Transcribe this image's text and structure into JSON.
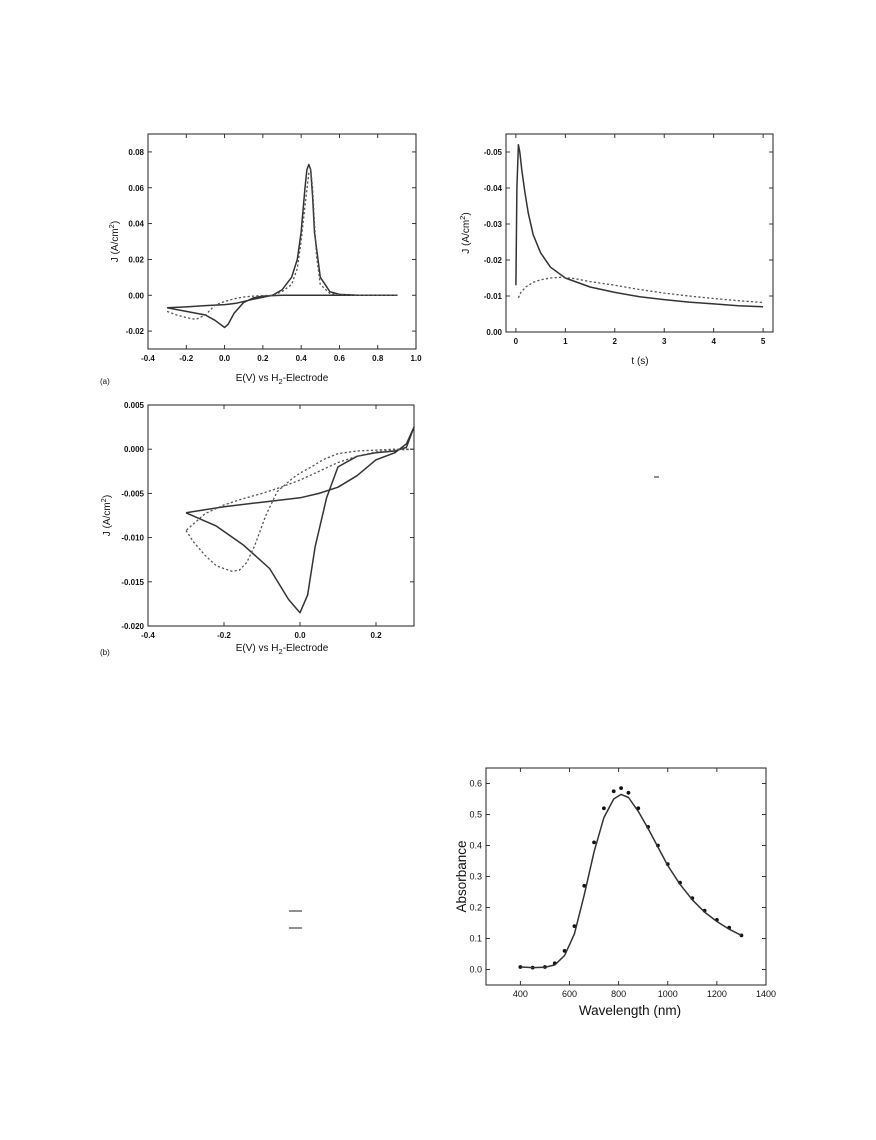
{
  "panels": {
    "a_label": "(a)",
    "b_label": "(b)"
  },
  "chart_data": [
    {
      "id": "cv_a",
      "type": "line",
      "xlabel": "E(V) vs H",
      "xlabel_sub": "2",
      "xlabel_post": "-Electrode",
      "ylabel": "J (A/cm",
      "ylabel_sup": "2",
      "ylabel_post": ")",
      "xlim": [
        -0.4,
        1.0
      ],
      "ylim": [
        -0.03,
        0.09
      ],
      "xticks": [
        -0.4,
        -0.2,
        0.0,
        0.2,
        0.4,
        0.6,
        0.8,
        1.0
      ],
      "xtick_labels": [
        "-0.4",
        "-0.2",
        "0.0",
        "0.2",
        "0.4",
        "0.6",
        "0.8",
        "1.0"
      ],
      "yticks": [
        -0.02,
        0.0,
        0.02,
        0.04,
        0.06,
        0.08
      ],
      "ytick_labels": [
        "-0.02",
        "0.00",
        "0.02",
        "0.04",
        "0.06",
        "0.08"
      ],
      "series": [
        {
          "style": "solid",
          "x": [
            -0.3,
            -0.2,
            -0.1,
            0.0,
            0.02,
            0.06,
            0.15,
            0.25,
            0.3,
            0.35,
            0.38,
            0.4,
            0.42,
            0.43,
            0.44,
            0.45,
            0.46,
            0.47,
            0.5,
            0.55,
            0.6,
            0.7,
            0.8,
            0.9,
            0.6,
            0.4,
            0.3,
            0.25,
            0.2,
            0.15,
            0.1,
            0.05,
            0.02,
            0.0,
            -0.05,
            -0.1,
            -0.2,
            -0.3
          ],
          "y": [
            -0.007,
            -0.0065,
            -0.0058,
            -0.0052,
            -0.005,
            -0.0045,
            -0.0022,
            0.0,
            0.003,
            0.01,
            0.02,
            0.035,
            0.06,
            0.07,
            0.073,
            0.07,
            0.055,
            0.035,
            0.01,
            0.002,
            0.0005,
            0.0,
            0.0,
            0.0,
            0.0,
            0.0,
            0.0,
            -0.0002,
            -0.0005,
            -0.0015,
            -0.004,
            -0.01,
            -0.016,
            -0.018,
            -0.014,
            -0.011,
            -0.009,
            -0.007
          ]
        },
        {
          "style": "dotted",
          "x": [
            -0.3,
            -0.25,
            -0.2,
            -0.15,
            -0.1,
            -0.05,
            0.0,
            0.05,
            0.1,
            0.15,
            0.2,
            0.25,
            0.3,
            0.35,
            0.38,
            0.4,
            0.42,
            0.44,
            0.45,
            0.46,
            0.47,
            0.48,
            0.5,
            0.55,
            0.6,
            0.7,
            0.8,
            0.9
          ],
          "y": [
            -0.009,
            -0.011,
            -0.0125,
            -0.0135,
            -0.011,
            -0.0055,
            -0.0035,
            -0.002,
            -0.001,
            -0.0005,
            -0.0002,
            0.0,
            0.002,
            0.006,
            0.015,
            0.03,
            0.05,
            0.068,
            0.07,
            0.06,
            0.04,
            0.022,
            0.006,
            0.001,
            0.0003,
            0.0,
            0.0,
            0.0
          ]
        }
      ]
    },
    {
      "id": "chrono",
      "type": "line",
      "xlabel": "t  (s)",
      "ylabel": "J (A/cm",
      "ylabel_sup": "2",
      "ylabel_post": ")",
      "xlim": [
        -0.2,
        5.2
      ],
      "ylim": [
        0.0,
        -0.055
      ],
      "xticks": [
        0,
        1,
        2,
        3,
        4,
        5
      ],
      "xtick_labels": [
        "0",
        "1",
        "2",
        "3",
        "4",
        "5"
      ],
      "yticks": [
        0.0,
        -0.01,
        -0.02,
        -0.03,
        -0.04,
        -0.05
      ],
      "ytick_labels": [
        "0.00",
        "-0.01",
        "-0.02",
        "-0.03",
        "-0.04",
        "-0.05"
      ],
      "series": [
        {
          "style": "solid",
          "x": [
            0.0,
            0.02,
            0.05,
            0.08,
            0.12,
            0.18,
            0.25,
            0.35,
            0.5,
            0.7,
            1.0,
            1.5,
            2.0,
            2.5,
            3.0,
            3.5,
            4.0,
            4.5,
            5.0
          ],
          "y": [
            -0.013,
            -0.04,
            -0.052,
            -0.05,
            -0.045,
            -0.039,
            -0.033,
            -0.027,
            -0.022,
            -0.018,
            -0.015,
            -0.0125,
            -0.011,
            -0.0098,
            -0.009,
            -0.0083,
            -0.0078,
            -0.0073,
            -0.007
          ]
        },
        {
          "style": "dotted",
          "x": [
            0.05,
            0.1,
            0.2,
            0.35,
            0.5,
            0.7,
            0.9,
            1.2,
            1.5,
            2.0,
            2.5,
            3.0,
            3.5,
            4.0,
            4.5,
            5.0
          ],
          "y": [
            -0.0095,
            -0.011,
            -0.0125,
            -0.0138,
            -0.0145,
            -0.015,
            -0.0152,
            -0.0148,
            -0.014,
            -0.013,
            -0.0118,
            -0.0108,
            -0.01,
            -0.0093,
            -0.0087,
            -0.0082
          ]
        }
      ]
    },
    {
      "id": "cv_b",
      "type": "line",
      "xlabel": "E(V) vs H",
      "xlabel_sub": "2",
      "xlabel_post": "-Electrode",
      "ylabel": "J (A/cm",
      "ylabel_sup": "2",
      "ylabel_post": ")",
      "xlim": [
        -0.4,
        0.3
      ],
      "ylim": [
        -0.02,
        0.005
      ],
      "xticks": [
        -0.4,
        -0.2,
        0.0,
        0.2
      ],
      "xtick_labels": [
        "-0.4",
        "-0.2",
        "0.0",
        "0.2"
      ],
      "yticks": [
        -0.02,
        -0.015,
        -0.01,
        -0.005,
        0.0,
        0.005
      ],
      "ytick_labels": [
        "-0.020",
        "-0.015",
        "-0.010",
        "-0.005",
        "0.000",
        "0.005"
      ],
      "series": [
        {
          "style": "solid",
          "x": [
            -0.3,
            -0.2,
            -0.1,
            0.0,
            0.05,
            0.1,
            0.15,
            0.2,
            0.25,
            0.28,
            0.3,
            0.28,
            0.25,
            0.2,
            0.15,
            0.1,
            0.07,
            0.04,
            0.02,
            0.0,
            -0.03,
            -0.08,
            -0.15,
            -0.22,
            -0.3
          ],
          "y": [
            -0.0072,
            -0.0065,
            -0.006,
            -0.0055,
            -0.005,
            -0.0043,
            -0.003,
            -0.0012,
            -0.0004,
            0.0006,
            0.0025,
            0.0002,
            -0.0002,
            -0.0004,
            -0.0008,
            -0.002,
            -0.0055,
            -0.011,
            -0.0165,
            -0.0185,
            -0.017,
            -0.0135,
            -0.0108,
            -0.0087,
            -0.0072
          ]
        },
        {
          "style": "dotted",
          "x": [
            -0.3,
            -0.28,
            -0.25,
            -0.22,
            -0.18,
            -0.16,
            -0.14,
            -0.12,
            -0.09,
            -0.06,
            -0.02,
            0.0,
            0.03,
            0.06,
            0.1,
            0.15,
            0.2,
            0.25,
            0.3,
            0.25,
            0.2,
            0.15,
            0.1,
            0.05,
            0.0,
            -0.05,
            -0.1,
            -0.15,
            -0.2,
            -0.25,
            -0.3
          ],
          "y": [
            -0.0092,
            -0.0105,
            -0.012,
            -0.0132,
            -0.0138,
            -0.0137,
            -0.0128,
            -0.011,
            -0.0075,
            -0.0048,
            -0.0033,
            -0.0027,
            -0.002,
            -0.0012,
            -0.0005,
            -0.0002,
            -0.0001,
            0.0,
            0.0,
            -0.0001,
            -0.0003,
            -0.0008,
            -0.0015,
            -0.0025,
            -0.0035,
            -0.0043,
            -0.005,
            -0.0056,
            -0.0063,
            -0.0073,
            -0.0092
          ]
        }
      ]
    },
    {
      "id": "absorbance",
      "type": "line",
      "xlabel": "Wavelength (nm)",
      "ylabel": "Absorbance",
      "xlim": [
        260,
        1400
      ],
      "ylim": [
        -0.05,
        0.65
      ],
      "xticks": [
        400,
        600,
        800,
        1000,
        1200,
        1400
      ],
      "xtick_labels": [
        "400",
        "600",
        "800",
        "1000",
        "1200",
        "1400"
      ],
      "yticks": [
        0.0,
        0.1,
        0.2,
        0.3,
        0.4,
        0.5,
        0.6
      ],
      "ytick_labels": [
        "0.0",
        "0.1",
        "0.2",
        "0.3",
        "0.4",
        "0.5",
        "0.6"
      ],
      "series": [
        {
          "style": "dots",
          "x": [
            400,
            450,
            500,
            540,
            580,
            620,
            660,
            700,
            740,
            780,
            810,
            840,
            880,
            920,
            960,
            1000,
            1050,
            1100,
            1150,
            1200,
            1250,
            1300
          ],
          "y": [
            0.008,
            0.006,
            0.008,
            0.02,
            0.06,
            0.14,
            0.27,
            0.41,
            0.52,
            0.575,
            0.585,
            0.57,
            0.52,
            0.46,
            0.4,
            0.34,
            0.28,
            0.23,
            0.19,
            0.16,
            0.135,
            0.11
          ]
        },
        {
          "style": "solid",
          "x": [
            400,
            450,
            500,
            540,
            580,
            620,
            660,
            700,
            740,
            780,
            810,
            840,
            880,
            920,
            960,
            1000,
            1050,
            1100,
            1150,
            1200,
            1250,
            1300
          ],
          "y": [
            0.008,
            0.006,
            0.007,
            0.015,
            0.045,
            0.115,
            0.24,
            0.38,
            0.49,
            0.55,
            0.565,
            0.555,
            0.51,
            0.455,
            0.395,
            0.335,
            0.275,
            0.225,
            0.185,
            0.155,
            0.13,
            0.11
          ]
        }
      ]
    }
  ]
}
